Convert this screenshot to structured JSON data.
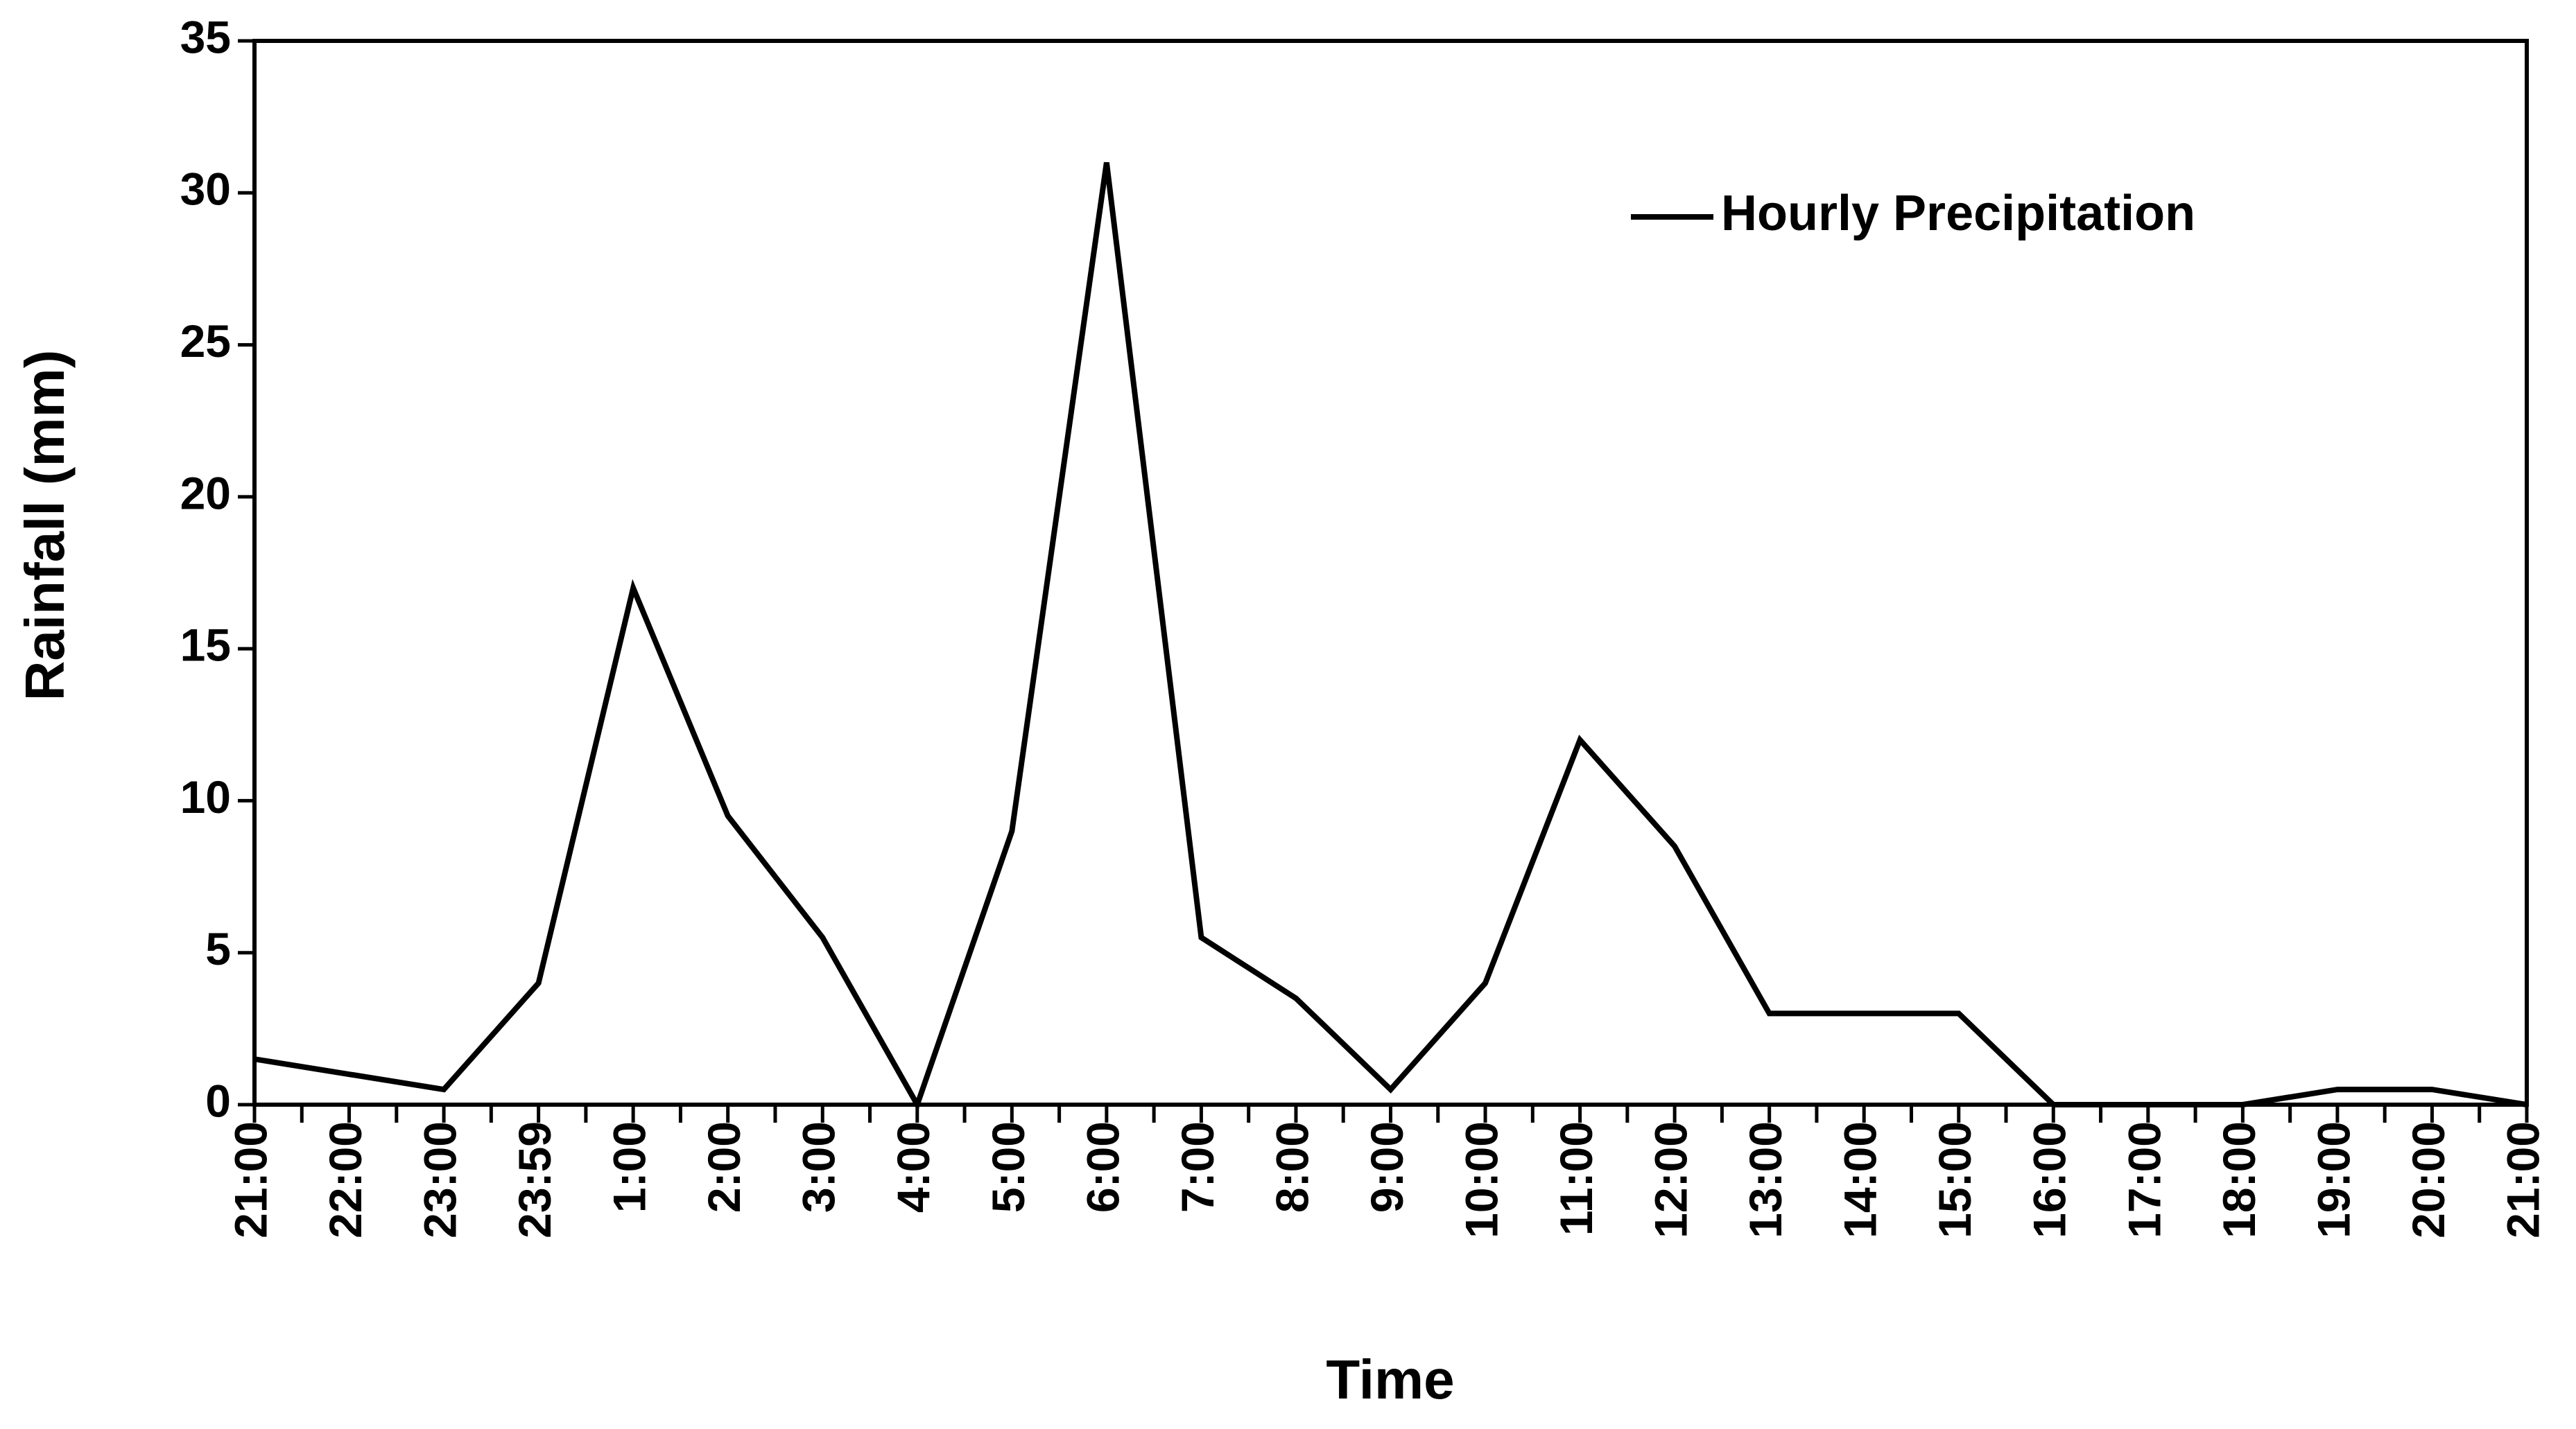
{
  "chart_data": {
    "type": "line",
    "x_label": "Time",
    "y_label": "Rainfall (mm)",
    "categories": [
      "21:00",
      "22:00",
      "23:00",
      "23:59",
      "1:00",
      "2:00",
      "3:00",
      "4:00",
      "5:00",
      "6:00",
      "7:00",
      "8:00",
      "9:00",
      "10:00",
      "11:00",
      "12:00",
      "13:00",
      "14:00",
      "15:00",
      "16:00",
      "17:00",
      "18:00",
      "19:00",
      "20:00",
      "21:00"
    ],
    "series": [
      {
        "name": "Hourly Precipitation",
        "color": "#000000",
        "values": [
          1.5,
          1,
          0.5,
          4,
          17,
          9.5,
          5.5,
          0,
          9,
          31,
          5.5,
          3.5,
          0.5,
          4,
          12,
          8.5,
          3,
          3,
          3,
          0,
          0,
          0,
          0.5,
          0.5,
          0
        ]
      }
    ],
    "ylim": [
      0,
      35
    ],
    "yticks": [
      0,
      5,
      10,
      15,
      20,
      25,
      30,
      35
    ],
    "grid": false,
    "legend": "upper right"
  }
}
